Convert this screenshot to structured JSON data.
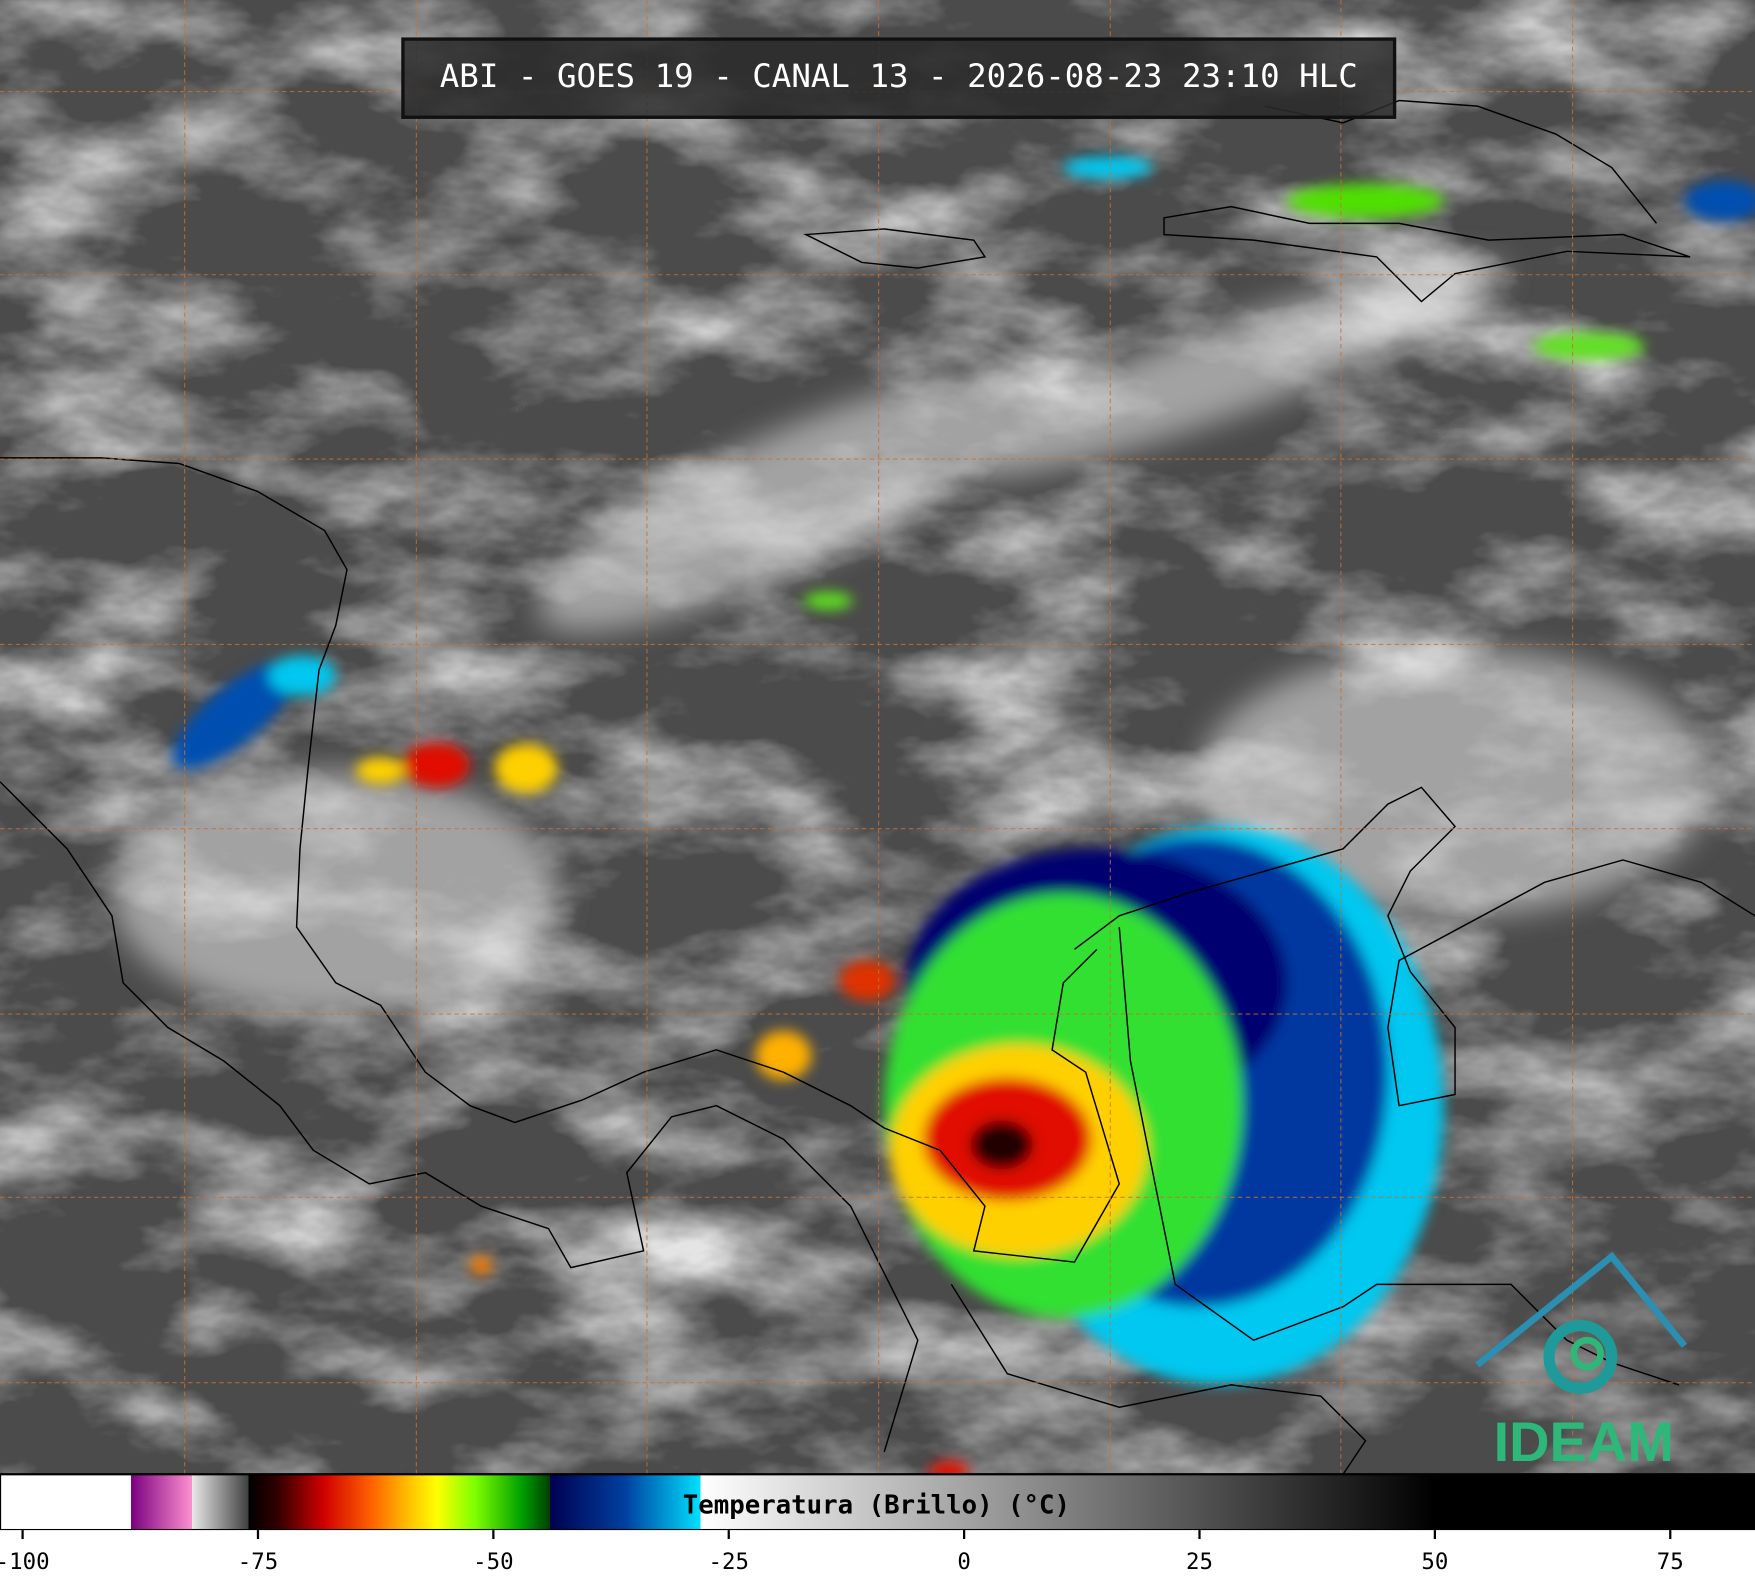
{
  "title": "ABI - GOES 19 - CANAL 13 - 2026-08-23 23:10 HLC",
  "logo": "IDEAM",
  "colorbar": {
    "label": "Temperatura (Brillo) (°C)",
    "lim": [
      -102.4,
      84
    ],
    "ticks": [
      -100,
      -75,
      -50,
      -25,
      0,
      25,
      50,
      75
    ],
    "colormap": [
      {
        "value": -102.4,
        "color": "#ffffff"
      },
      {
        "value": -88.5,
        "color": "#ffffff"
      },
      {
        "value": -88.5,
        "color": "#7a0080"
      },
      {
        "value": -82,
        "color": "#ff90d0"
      },
      {
        "value": -82,
        "color": "#e8e8e8"
      },
      {
        "value": -76,
        "color": "#404040"
      },
      {
        "value": -76,
        "color": "#000000"
      },
      {
        "value": -73,
        "color": "#300000"
      },
      {
        "value": -68,
        "color": "#d00000"
      },
      {
        "value": -63,
        "color": "#ff6000"
      },
      {
        "value": -59,
        "color": "#ffc000"
      },
      {
        "value": -56,
        "color": "#ffff00"
      },
      {
        "value": -52,
        "color": "#80ff00"
      },
      {
        "value": -47,
        "color": "#00a000"
      },
      {
        "value": -44,
        "color": "#004000"
      },
      {
        "value": -44,
        "color": "#000050"
      },
      {
        "value": -36,
        "color": "#0040a0"
      },
      {
        "value": -28,
        "color": "#00e0ff"
      },
      {
        "value": -28,
        "color": "#ffffff"
      },
      {
        "value": 50,
        "color": "#000000"
      },
      {
        "value": 84,
        "color": "#000000"
      }
    ]
  }
}
